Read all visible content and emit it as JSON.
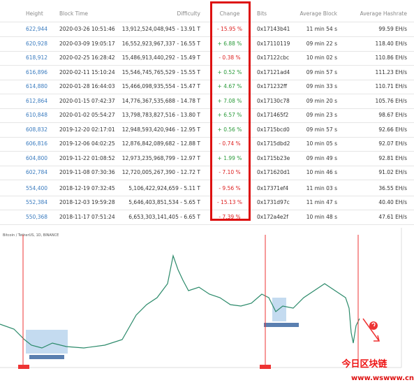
{
  "table": {
    "headers": [
      "Height",
      "Block Time",
      "Difficulty",
      "Change",
      "Bits",
      "Average Block",
      "Average Hashrate"
    ],
    "groups": [
      [
        [
          "622,944",
          "2020-03-26 10:51:46",
          "13,912,524,048,945 - 13.91 T",
          "- 15.95 %",
          "0x17143b41",
          "11 min 54 s",
          "99.59 EH/s"
        ],
        [
          "620,928",
          "2020-03-09 19:05:17",
          "16,552,923,967,337 - 16.55 T",
          "+ 6.88 %",
          "0x17110119",
          "09 min 22 s",
          "118.40 EH/s"
        ],
        [
          "618,912",
          "2020-02-25 16:28:42",
          "15,486,913,440,292 - 15.49 T",
          "- 0.38 %",
          "0x17122cbc",
          "10 min 02 s",
          "110.86 EH/s"
        ],
        [
          "616,896",
          "2020-02-11 15:10:24",
          "15,546,745,765,529 - 15.55 T",
          "+ 0.52 %",
          "0x17121ad4",
          "09 min 57 s",
          "111.23 EH/s"
        ],
        [
          "614,880",
          "2020-01-28 16:44:03",
          "15,466,098,935,554 - 15.47 T",
          "+ 4.67 %",
          "0x171232ff",
          "09 min 33 s",
          "110.71 EH/s"
        ],
        [
          "612,864",
          "2020-01-15 07:42:37",
          "14,776,367,535,688 - 14.78 T",
          "+ 7.08 %",
          "0x17130c78",
          "09 min 20 s",
          "105.76 EH/s"
        ],
        [
          "610,848",
          "2020-01-02 05:54:27",
          "13,798,783,827,516 - 13.80 T",
          "+ 6.57 %",
          "0x171465f2",
          "09 min 23 s",
          "98.67 EH/s"
        ],
        [
          "608,832",
          "2019-12-20 02:17:01",
          "12,948,593,420,946 - 12.95 T",
          "+ 0.56 %",
          "0x1715bcd0",
          "09 min 57 s",
          "92.66 EH/s"
        ],
        [
          "606,816",
          "2019-12-06 04:02:25",
          "12,876,842,089,682 - 12.88 T",
          "- 0.74 %",
          "0x1715dbd2",
          "10 min 05 s",
          "92.07 EH/s"
        ],
        [
          "604,800",
          "2019-11-22 01:08:52",
          "12,973,235,968,799 - 12.97 T",
          "+ 1.99 %",
          "0x1715b23e",
          "09 min 49 s",
          "92.81 EH/s"
        ],
        [
          "602,784",
          "2019-11-08 07:30:36",
          "12,720,005,267,390 - 12.72 T",
          "- 7.10 %",
          "0x171620d1",
          "10 min 46 s",
          "91.02 EH/s"
        ]
      ],
      [
        [
          "554,400",
          "2018-12-19 07:32:45",
          "5,106,422,924,659 - 5.11 T",
          "- 9.56 %",
          "0x17371ef4",
          "11 min 03 s",
          "36.55 EH/s"
        ],
        [
          "552,384",
          "2018-12-03 19:59:28",
          "5,646,403,851,534 - 5.65 T",
          "- 15.13 %",
          "0x1731d97c",
          "11 min 47 s",
          "40.40 EH/s"
        ],
        [
          "550,368",
          "2018-11-17 07:51:24",
          "6,653,303,141,405 - 6.65 T",
          "- 7.39 %",
          "0x172a4e2f",
          "10 min 48 s",
          "47.61 EH/s"
        ]
      ]
    ]
  },
  "chart": {
    "symbol": "Bitcoin / TetherUS, 1D, BINANCE"
  },
  "watermark": {
    "title": "今日区块链",
    "url": "www.wswww.cn"
  }
}
